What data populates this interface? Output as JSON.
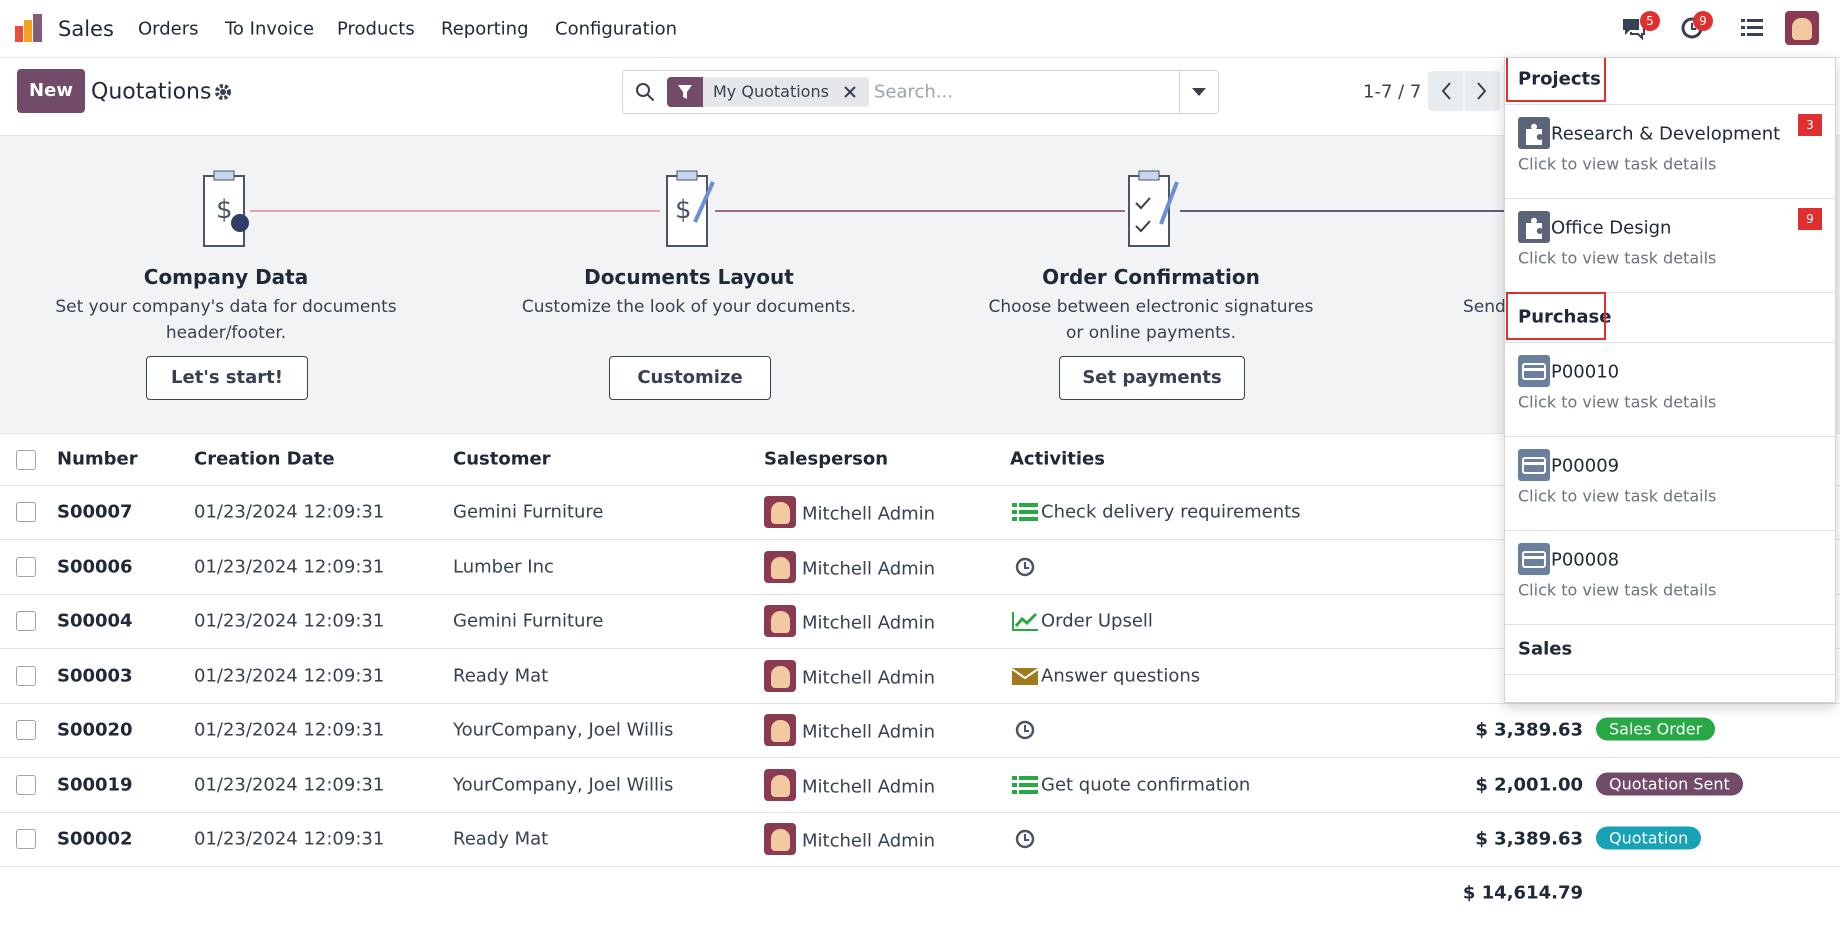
{
  "navbar": {
    "app": "Sales",
    "menu": [
      "Orders",
      "To Invoice",
      "Products",
      "Reporting",
      "Configuration"
    ],
    "messages_badge": "5",
    "activities_badge": "9"
  },
  "control_panel": {
    "new_button": "New",
    "breadcrumb": "Quotations",
    "search_facet": "My Quotations",
    "search_placeholder": "Search...",
    "pager": "1-7 / 7"
  },
  "onboarding": [
    {
      "title": "Company Data",
      "description": [
        "Set your company's data for documents",
        "header/footer."
      ],
      "button": "Let's start!"
    },
    {
      "title": "Documents Layout",
      "description": [
        "Customize the look of your documents."
      ],
      "button": "Customize"
    },
    {
      "title": "Order Confirmation",
      "description": [
        "Choose between electronic signatures",
        "or online payments."
      ],
      "button": "Set payments"
    },
    {
      "description": [
        "Send"
      ]
    }
  ],
  "table": {
    "headers": [
      "Number",
      "Creation Date",
      "Customer",
      "Salesperson",
      "Activities"
    ],
    "rows": [
      {
        "number": "S00007",
        "date": "01/23/2024 12:09:31",
        "customer": "Gemini Furniture",
        "salesperson": "Mitchell Admin",
        "activity": "Check delivery requirements",
        "activity_icon": "list"
      },
      {
        "number": "S00006",
        "date": "01/23/2024 12:09:31",
        "customer": "Lumber Inc",
        "salesperson": "Mitchell Admin",
        "activity": null,
        "activity_icon": "clock"
      },
      {
        "number": "S00004",
        "date": "01/23/2024 12:09:31",
        "customer": "Gemini Furniture",
        "salesperson": "Mitchell Admin",
        "activity": "Order Upsell",
        "activity_icon": "chart"
      },
      {
        "number": "S00003",
        "date": "01/23/2024 12:09:31",
        "customer": "Ready Mat",
        "salesperson": "Mitchell Admin",
        "activity": "Answer questions",
        "activity_icon": "mail"
      },
      {
        "number": "S00020",
        "date": "01/23/2024 12:09:31",
        "customer": "YourCompany, Joel Willis",
        "salesperson": "Mitchell Admin",
        "activity": null,
        "activity_icon": "clock",
        "total": "$ 3,389.63",
        "status": "Sales Order",
        "status_color": "#28a745"
      },
      {
        "number": "S00019",
        "date": "01/23/2024 12:09:31",
        "customer": "YourCompany, Joel Willis",
        "salesperson": "Mitchell Admin",
        "activity": "Get quote confirmation",
        "activity_icon": "list",
        "total": "$ 2,001.00",
        "status": "Quotation Sent",
        "status_color": "#714b67"
      },
      {
        "number": "S00002",
        "date": "01/23/2024 12:09:31",
        "customer": "Ready Mat",
        "salesperson": "Mitchell Admin",
        "activity": null,
        "activity_icon": "clock",
        "total": "$ 3,389.63",
        "status": "Quotation",
        "status_color": "#17a2b8"
      }
    ],
    "grand_total": "$ 14,614.79"
  },
  "activity_dropdown": {
    "groups": [
      {
        "name": "Projects",
        "items": [
          {
            "title": "Research & Development",
            "subtitle": "Click to view task details",
            "count": "3",
            "icon": "puzzle"
          },
          {
            "title": "Office Design",
            "subtitle": "Click to view task details",
            "count": "9",
            "icon": "puzzle"
          }
        ]
      },
      {
        "name": "Purchase",
        "items": [
          {
            "title": "P00010",
            "subtitle": "Click to view task details",
            "icon": "card"
          },
          {
            "title": "P00009",
            "subtitle": "Click to view task details",
            "icon": "card"
          },
          {
            "title": "P00008",
            "subtitle": "Click to view task details",
            "icon": "card"
          }
        ]
      },
      {
        "name": "Sales",
        "items": []
      }
    ]
  }
}
